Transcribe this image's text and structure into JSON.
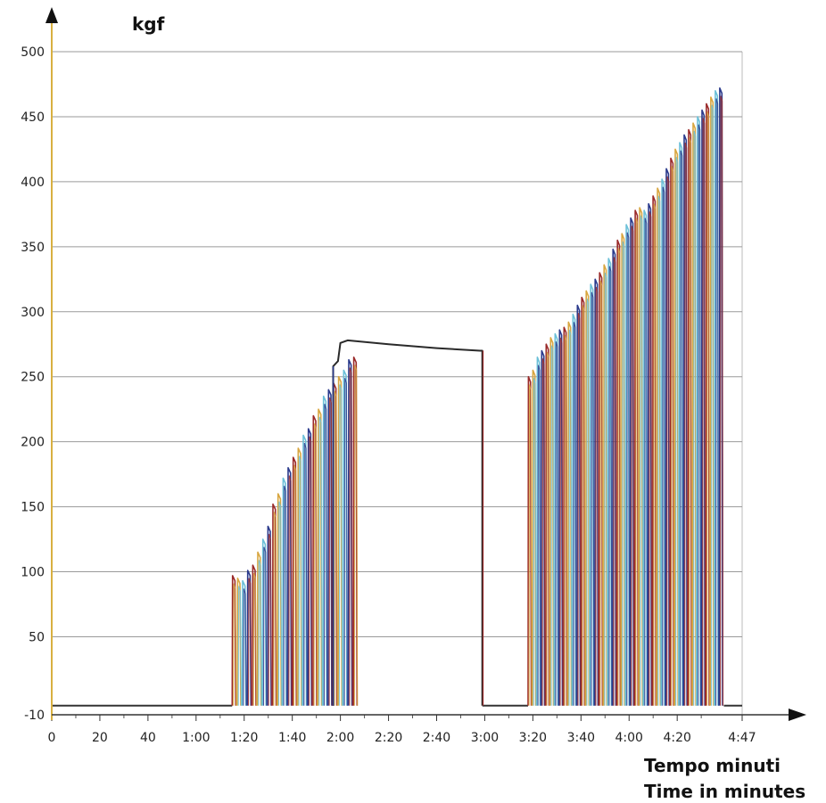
{
  "chart_data": {
    "type": "line",
    "ylabel": "kgf",
    "xlabel_lines": [
      "Tempo minuti",
      "Time in minutes"
    ],
    "ylim": [
      -10,
      500
    ],
    "xlim_seconds": [
      0,
      287
    ],
    "yticks": [
      -10,
      50,
      100,
      150,
      200,
      250,
      300,
      350,
      400,
      450,
      500
    ],
    "xticks": [
      {
        "label": "0",
        "seconds": 0
      },
      {
        "label": "20",
        "seconds": 20
      },
      {
        "label": "40",
        "seconds": 40
      },
      {
        "label": "1:00",
        "seconds": 60
      },
      {
        "label": "1:20",
        "seconds": 80
      },
      {
        "label": "1:40",
        "seconds": 100
      },
      {
        "label": "2:00",
        "seconds": 120
      },
      {
        "label": "2:20",
        "seconds": 140
      },
      {
        "label": "2:40",
        "seconds": 160
      },
      {
        "label": "3:00",
        "seconds": 180
      },
      {
        "label": "3:20",
        "seconds": 200
      },
      {
        "label": "3:40",
        "seconds": 220
      },
      {
        "label": "4:00",
        "seconds": 240
      },
      {
        "label": "4:20",
        "seconds": 260
      },
      {
        "label": "4:47",
        "seconds": 287
      }
    ],
    "grid": true,
    "series_colors": [
      "#9a2a2a",
      "#d8a640",
      "#6cc0d8",
      "#2a3a8c"
    ],
    "baseline_color": "#333333",
    "baseline_kgf": -3,
    "phase1_peaks": {
      "start_s": 75,
      "step_s": 2.1,
      "values": [
        97,
        95,
        93,
        101,
        105,
        115,
        125,
        135,
        152,
        160,
        172,
        180,
        188,
        195,
        205,
        210,
        220,
        225,
        235,
        240,
        245,
        250,
        255,
        263,
        265
      ]
    },
    "sustained_hold": {
      "points_s_kgf": [
        [
          117,
          -3
        ],
        [
          117,
          258
        ],
        [
          119,
          262
        ],
        [
          120,
          276
        ],
        [
          123,
          278
        ],
        [
          140,
          275
        ],
        [
          160,
          272
        ],
        [
          178,
          270
        ],
        [
          179,
          270
        ],
        [
          179,
          -3
        ]
      ]
    },
    "phase3_peaks": {
      "start_s": 198,
      "step_s": 1.85,
      "values": [
        250,
        255,
        265,
        270,
        275,
        280,
        283,
        286,
        288,
        292,
        298,
        305,
        311,
        316,
        321,
        325,
        330,
        336,
        341,
        348,
        355,
        360,
        367,
        372,
        378,
        380,
        378,
        383,
        389,
        395,
        402,
        410,
        418,
        425,
        430,
        436,
        440,
        445,
        450,
        455,
        460,
        465,
        470,
        472
      ]
    }
  }
}
